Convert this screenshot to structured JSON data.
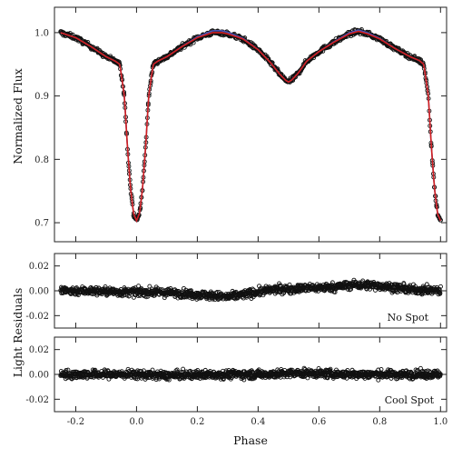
{
  "chart_data": [
    {
      "type": "scatter",
      "panel": "light-curve",
      "xlabel": "",
      "ylabel": "Normalized Flux",
      "xlim": [
        -0.27,
        1.02
      ],
      "ylim": [
        0.67,
        1.04
      ],
      "xticks": [
        -0.2,
        0.0,
        0.2,
        0.4,
        0.6,
        0.8,
        1.0
      ],
      "yticks": [
        0.7,
        0.8,
        0.9,
        1.0
      ],
      "ytick_labels": [
        "0.7",
        "0.8",
        "0.9",
        "1.0"
      ],
      "series": [
        {
          "kind": "observations",
          "marker": "open-circle",
          "color": "#111111",
          "points_x": [
            -0.25,
            -0.2,
            -0.15,
            -0.1,
            -0.07,
            -0.055,
            -0.04,
            -0.03,
            -0.02,
            -0.01,
            0.0,
            0.01,
            0.02,
            0.03,
            0.04,
            0.055,
            0.07,
            0.1,
            0.15,
            0.2,
            0.25,
            0.28,
            0.3,
            0.35,
            0.4,
            0.44,
            0.47,
            0.49,
            0.5,
            0.51,
            0.53,
            0.56,
            0.6,
            0.65,
            0.7,
            0.73,
            0.76,
            0.8,
            0.85,
            0.9,
            0.93,
            0.945,
            0.96,
            0.97,
            0.98,
            0.99,
            1.0
          ],
          "points_y": [
            1.0,
            0.992,
            0.978,
            0.962,
            0.955,
            0.95,
            0.9,
            0.82,
            0.755,
            0.715,
            0.703,
            0.715,
            0.755,
            0.82,
            0.9,
            0.95,
            0.955,
            0.962,
            0.978,
            0.992,
            1.0,
            1.0,
            0.998,
            0.99,
            0.973,
            0.953,
            0.935,
            0.925,
            0.922,
            0.925,
            0.935,
            0.955,
            0.97,
            0.985,
            0.998,
            1.002,
            0.998,
            0.99,
            0.975,
            0.962,
            0.956,
            0.95,
            0.9,
            0.82,
            0.755,
            0.715,
            0.703
          ]
        },
        {
          "kind": "model",
          "name": "",
          "color": "#d21f1f"
        },
        {
          "kind": "model",
          "name": "",
          "color": "#4a53b5"
        }
      ]
    },
    {
      "type": "scatter",
      "panel": "residuals-no-spot",
      "annotation": "No Spot",
      "ylabel": "Light Residuals",
      "xlim": [
        -0.27,
        1.02
      ],
      "ylim": [
        -0.03,
        0.03
      ],
      "yticks": [
        -0.02,
        0.0,
        0.02
      ],
      "ytick_labels": [
        "-0.02",
        "0.00",
        "0.02"
      ],
      "x": [
        -0.25,
        -0.15,
        -0.05,
        0.05,
        0.15,
        0.25,
        0.3,
        0.35,
        0.45,
        0.55,
        0.65,
        0.72,
        0.8,
        0.9,
        1.0
      ],
      "y": [
        0.0,
        0.0,
        -0.001,
        -0.001,
        -0.002,
        -0.004,
        -0.005,
        -0.003,
        0.001,
        0.002,
        0.003,
        0.005,
        0.004,
        0.001,
        0.0
      ],
      "scatter_halfwidth": 0.006
    },
    {
      "type": "scatter",
      "panel": "residuals-cool-spot",
      "annotation": "Cool Spot",
      "xlabel": "Phase",
      "xlim": [
        -0.27,
        1.02
      ],
      "ylim": [
        -0.03,
        0.03
      ],
      "xticks": [
        -0.2,
        0.0,
        0.2,
        0.4,
        0.6,
        0.8,
        1.0
      ],
      "xtick_labels": [
        "-0.2",
        "0.0",
        "0.2",
        "0.4",
        "0.6",
        "0.8",
        "1.0"
      ],
      "yticks": [
        -0.02,
        0.0,
        0.02
      ],
      "ytick_labels": [
        "-0.02",
        "0.00",
        "0.02"
      ],
      "x": [
        -0.25,
        -0.1,
        0.0,
        0.1,
        0.25,
        0.4,
        0.55,
        0.7,
        0.85,
        1.0
      ],
      "y": [
        0.0,
        0.0,
        0.0,
        -0.001,
        0.0,
        0.0,
        0.001,
        0.0,
        0.0,
        0.0
      ],
      "scatter_halfwidth": 0.006
    }
  ]
}
